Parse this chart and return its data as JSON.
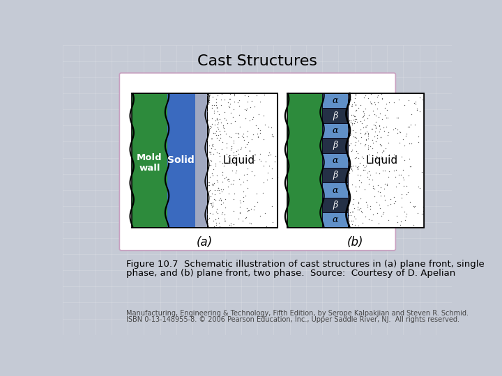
{
  "title": "Cast Structures",
  "title_fontsize": 16,
  "background_color": "#c5cad5",
  "panel_border": "#c8a0c0",
  "green_color": "#2d8b3c",
  "blue_solid_color": "#3a6abf",
  "alpha_stripe_color": "#6090c8",
  "beta_stripe_color": "#101018",
  "interface_gray": "#a0a8c0",
  "fig_caption_line1": "Figure 10.7  Schematic illustration of cast structures in (a) plane front, single",
  "fig_caption_line2": "phase, and (b) plane front, two phase.  Source:  Courtesy of D. Apelian",
  "footnote_line1": "Manufacturing, Engineering & Technology, Fifth Edition, by Serope Kalpakjian and Steven R. Schmid.",
  "footnote_line2": "ISBN 0-13-148955-8. © 2006 Pearson Education, Inc., Upper Saddle River, NJ.  All rights reserved.",
  "label_a": "(a)",
  "label_b": "(b)"
}
